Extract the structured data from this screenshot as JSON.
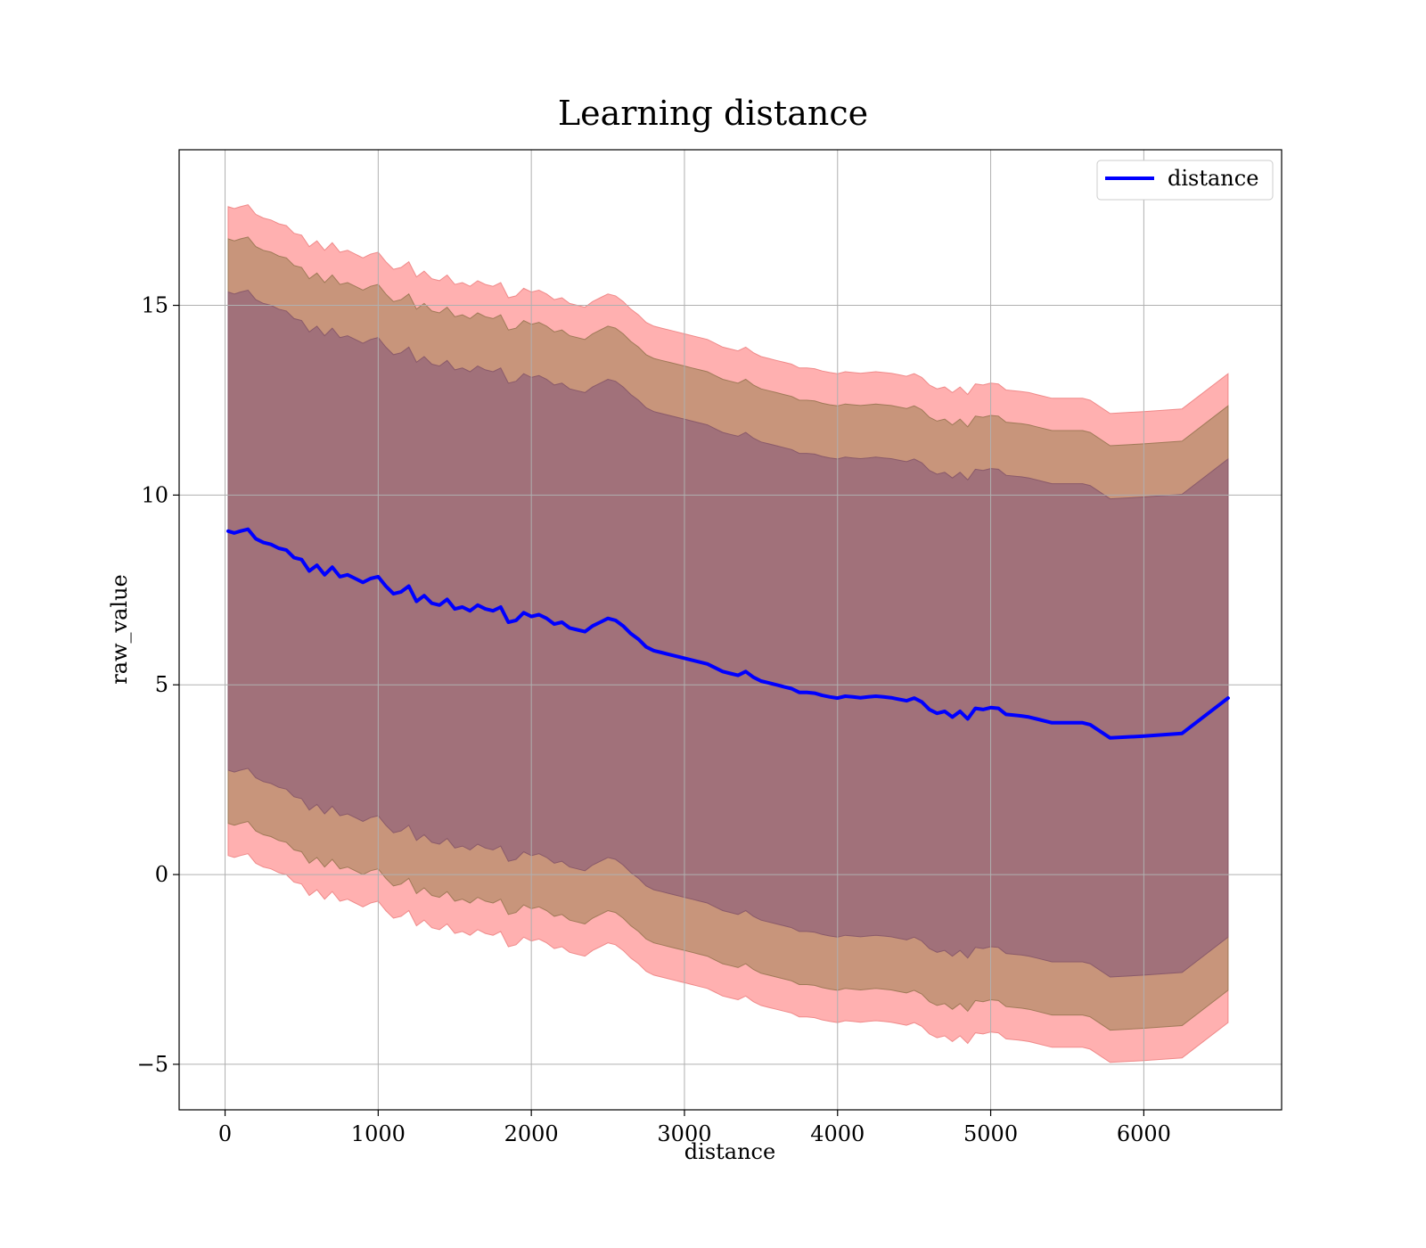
{
  "chart_data": {
    "type": "line",
    "title": "Learning distance",
    "xlabel": "distance",
    "ylabel": "raw_value",
    "xlim": [
      -300,
      6900
    ],
    "ylim": [
      -6.2,
      19.1
    ],
    "xticks": [
      0,
      1000,
      2000,
      3000,
      4000,
      5000,
      6000
    ],
    "xtick_labels": [
      "0",
      "1000",
      "2000",
      "3000",
      "4000",
      "5000",
      "6000"
    ],
    "yticks": [
      -5,
      0,
      5,
      10,
      15
    ],
    "ytick_labels": [
      "−5",
      "0",
      "5",
      "10",
      "15"
    ],
    "grid": true,
    "legend": {
      "position": "top-right",
      "entries": [
        {
          "label": "distance",
          "color": "#0000ff"
        }
      ]
    },
    "colors": {
      "line": "#0000ff",
      "band_outer": "#ffb0b0",
      "band_middle": "#c8957b",
      "band_inner": "#a1717a",
      "grid": "#b0b0b0"
    },
    "x": [
      20,
      60,
      100,
      150,
      200,
      250,
      300,
      350,
      400,
      450,
      500,
      550,
      600,
      650,
      700,
      750,
      800,
      850,
      900,
      950,
      1000,
      1050,
      1100,
      1150,
      1200,
      1250,
      1300,
      1350,
      1400,
      1450,
      1500,
      1550,
      1600,
      1650,
      1700,
      1750,
      1800,
      1850,
      1900,
      1950,
      2000,
      2050,
      2100,
      2150,
      2200,
      2250,
      2300,
      2350,
      2400,
      2450,
      2500,
      2550,
      2600,
      2650,
      2700,
      2750,
      2800,
      2850,
      2900,
      2950,
      3000,
      3050,
      3100,
      3150,
      3200,
      3250,
      3300,
      3350,
      3400,
      3450,
      3500,
      3550,
      3600,
      3650,
      3700,
      3750,
      3800,
      3850,
      3900,
      3950,
      4000,
      4050,
      4100,
      4150,
      4200,
      4250,
      4300,
      4350,
      4400,
      4450,
      4500,
      4550,
      4600,
      4650,
      4700,
      4750,
      4800,
      4850,
      4900,
      4950,
      5000,
      5050,
      5100,
      5200,
      5250,
      5300,
      5400,
      5500,
      5600,
      5650,
      5780,
      6000,
      6250,
      6550
    ],
    "series": [
      {
        "name": "distance",
        "values": [
          9.05,
          9.0,
          9.05,
          9.1,
          8.85,
          8.75,
          8.7,
          8.6,
          8.55,
          8.35,
          8.3,
          8.0,
          8.15,
          7.9,
          8.1,
          7.85,
          7.9,
          7.8,
          7.7,
          7.8,
          7.85,
          7.6,
          7.4,
          7.45,
          7.6,
          7.2,
          7.35,
          7.15,
          7.1,
          7.25,
          7.0,
          7.05,
          6.95,
          7.1,
          7.0,
          6.95,
          7.05,
          6.65,
          6.7,
          6.9,
          6.8,
          6.85,
          6.75,
          6.6,
          6.65,
          6.5,
          6.45,
          6.4,
          6.55,
          6.65,
          6.75,
          6.7,
          6.55,
          6.35,
          6.2,
          6.0,
          5.9,
          5.85,
          5.8,
          5.75,
          5.7,
          5.65,
          5.6,
          5.55,
          5.45,
          5.35,
          5.3,
          5.25,
          5.35,
          5.2,
          5.1,
          5.05,
          5.0,
          4.95,
          4.9,
          4.8,
          4.8,
          4.78,
          4.72,
          4.68,
          4.65,
          4.7,
          4.68,
          4.66,
          4.68,
          4.7,
          4.68,
          4.66,
          4.62,
          4.58,
          4.65,
          4.55,
          4.35,
          4.25,
          4.3,
          4.15,
          4.3,
          4.1,
          4.38,
          4.35,
          4.4,
          4.38,
          4.22,
          4.18,
          4.15,
          4.1,
          4.0,
          4.0,
          4.0,
          3.95,
          3.6,
          3.65,
          3.72,
          4.65
        ]
      }
    ],
    "bands": [
      {
        "label": "outer",
        "offset": 8.55
      },
      {
        "label": "middle",
        "offset": 7.7
      },
      {
        "label": "inner",
        "offset": 6.3
      }
    ]
  }
}
